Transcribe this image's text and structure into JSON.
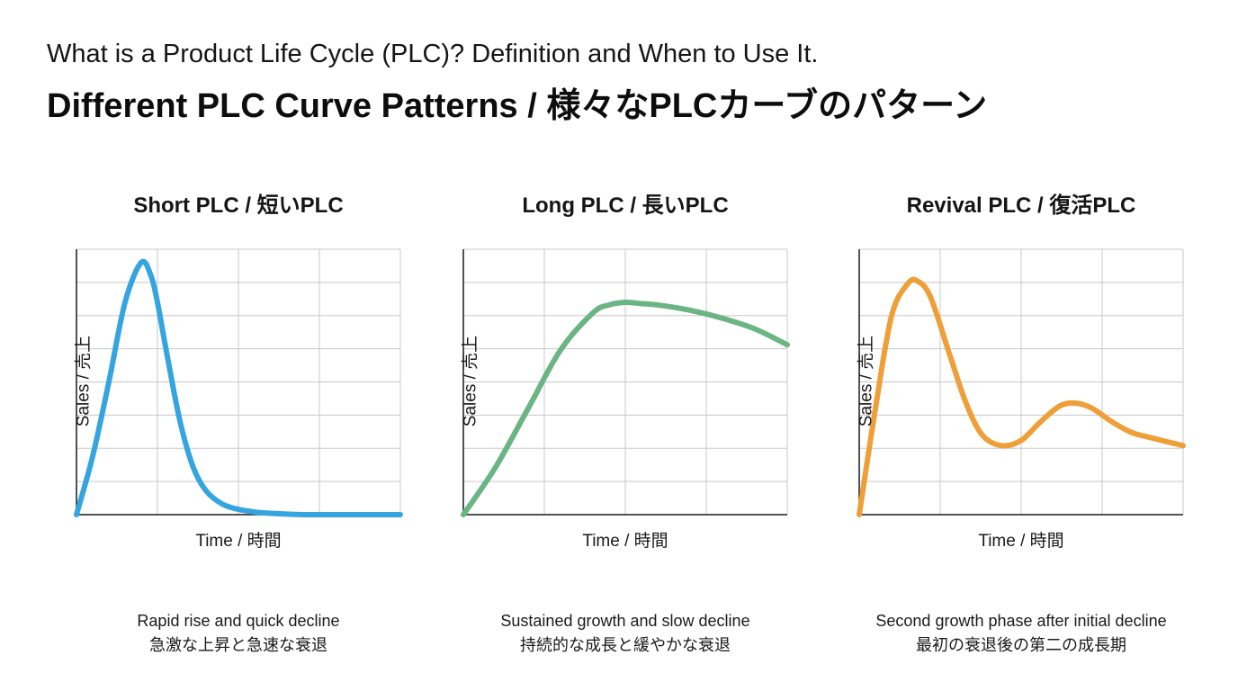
{
  "header": {
    "subtitle": "What is a Product Life Cycle (PLC)? Definition and When to Use It.",
    "title": "Different PLC Curve Patterns / 様々なPLCカーブのパターン"
  },
  "colors": {
    "short": "#35a5e0",
    "long": "#6bb584",
    "revival": "#ee9f38",
    "grid": "#c8c8c8",
    "axis": "#1a1a1a"
  },
  "chart_data": [
    {
      "type": "line",
      "title": "Short PLC / 短いPLC",
      "xlabel": "Time / 時間",
      "ylabel": "Sales / 売上",
      "xlim": [
        0,
        100
      ],
      "ylim": [
        0,
        100
      ],
      "grid": true,
      "series": [
        {
          "name": "Short PLC",
          "x": [
            0,
            5,
            10,
            15,
            20,
            23,
            25,
            28,
            32,
            36,
            40,
            45,
            50,
            55,
            60,
            65,
            70,
            75,
            80,
            90,
            100
          ],
          "values": [
            0,
            22,
            50,
            80,
            95,
            90,
            80,
            60,
            35,
            18,
            9,
            4,
            2,
            1,
            0.5,
            0.2,
            0,
            0,
            0,
            0,
            0
          ]
        }
      ],
      "description": [
        "Rapid rise and quick decline",
        "急激な上昇と急速な衰退"
      ]
    },
    {
      "type": "line",
      "title": "Long PLC / 長いPLC",
      "xlabel": "Time / 時間",
      "ylabel": "Sales / 売上",
      "xlim": [
        0,
        100
      ],
      "ylim": [
        0,
        100
      ],
      "grid": true,
      "series": [
        {
          "name": "Long PLC",
          "x": [
            0,
            10,
            20,
            30,
            40,
            45,
            50,
            55,
            60,
            70,
            80,
            90,
            100
          ],
          "values": [
            0,
            18,
            40,
            62,
            76,
            79,
            80,
            79.5,
            79,
            77,
            74,
            70,
            64
          ]
        }
      ],
      "description": [
        "Sustained growth and slow decline",
        "持続的な成長と緩やかな衰退"
      ]
    },
    {
      "type": "line",
      "title": "Revival PLC / 復活PLC",
      "xlabel": "Time / 時間",
      "ylabel": "Sales / 売上",
      "xlim": [
        0,
        100
      ],
      "ylim": [
        0,
        100
      ],
      "grid": true,
      "series": [
        {
          "name": "Revival PLC",
          "x": [
            0,
            5,
            10,
            15,
            18,
            22,
            28,
            33,
            38,
            44,
            50,
            56,
            62,
            67,
            72,
            78,
            84,
            90,
            100
          ],
          "values": [
            0,
            40,
            75,
            87,
            88,
            82,
            60,
            42,
            30,
            26,
            28,
            35,
            41,
            42,
            40,
            35,
            31,
            29,
            26
          ]
        }
      ],
      "description": [
        "Second growth phase after initial decline",
        "最初の衰退後の第二の成長期"
      ]
    }
  ]
}
